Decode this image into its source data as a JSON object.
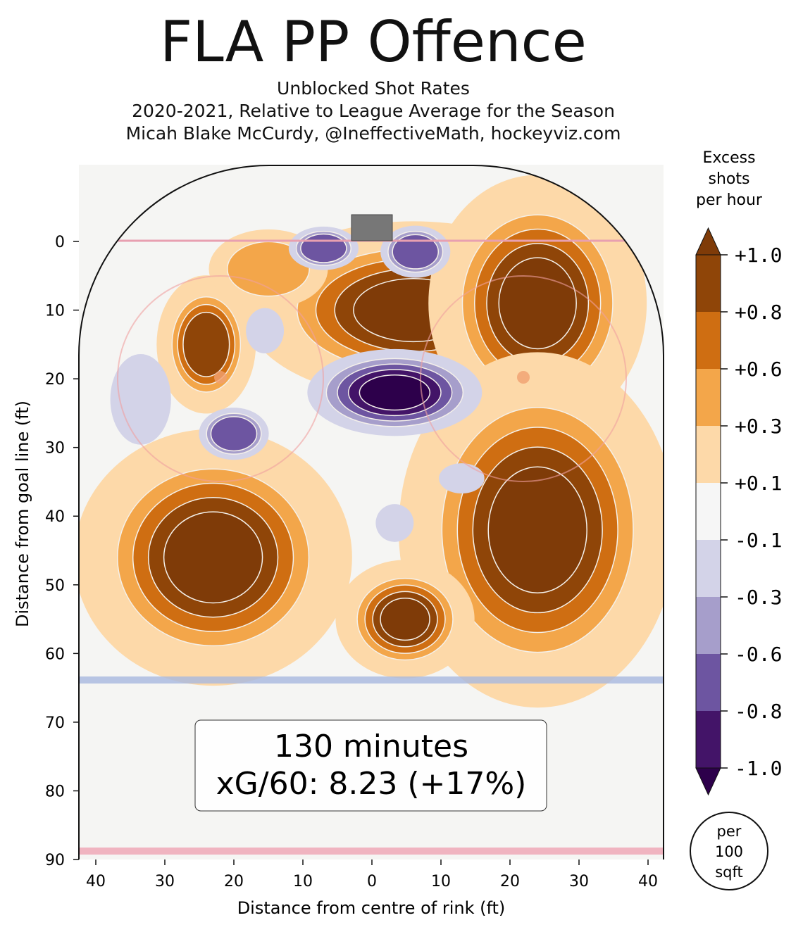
{
  "chart_data": {
    "type": "heatmap",
    "title": "FLA PP Offence",
    "subtitle": [
      "Unblocked Shot Rates",
      "2020-2021, Relative to League Average for the Season",
      "Micah Blake McCurdy, @IneffectiveMath, hockeyviz.com"
    ],
    "xlabel": "Distance from centre of rink (ft)",
    "ylabel": "Distance from goal line (ft)",
    "xticks": [
      {
        "v": -40,
        "label": "40"
      },
      {
        "v": -30,
        "label": "30"
      },
      {
        "v": -20,
        "label": "20"
      },
      {
        "v": -10,
        "label": "10"
      },
      {
        "v": 0,
        "label": "0"
      },
      {
        "v": 10,
        "label": "10"
      },
      {
        "v": 20,
        "label": "20"
      },
      {
        "v": 30,
        "label": "30"
      },
      {
        "v": 40,
        "label": "40"
      }
    ],
    "yticks": [
      0,
      10,
      20,
      30,
      40,
      50,
      60,
      70,
      80,
      90
    ],
    "xlim": [
      -42.5,
      42.5
    ],
    "ylim": [
      90,
      -11
    ],
    "grid": false,
    "colorbar": {
      "title": [
        "Excess",
        "shots",
        "per hour"
      ],
      "ticks": [
        "+1.0",
        "+0.8",
        "+0.6",
        "+0.3",
        "+0.1",
        "-0.1",
        "-0.3",
        "-0.6",
        "-0.8",
        "-1.0"
      ],
      "band_colors": [
        "#7f3b08",
        "#8f4508",
        "#cf6e12",
        "#f3a64a",
        "#fdd9a9",
        "#f6f6f6",
        "#d3d3e8",
        "#a69ecb",
        "#6d55a1",
        "#431468",
        "#2d004b"
      ],
      "unit_badge": [
        "per",
        "100",
        "sqft"
      ]
    },
    "regions": [
      {
        "x": -23,
        "y": 46,
        "rx": 14,
        "ry": 13,
        "level": 5
      },
      {
        "x": 6,
        "y": 10,
        "rx": 17,
        "ry": 9,
        "level": 5
      },
      {
        "x": 24,
        "y": 9,
        "rx": 11,
        "ry": 13,
        "level": 5
      },
      {
        "x": 24,
        "y": 42,
        "rx": 14,
        "ry": 18,
        "level": 5
      },
      {
        "x": 4.8,
        "y": 55,
        "rx": 7,
        "ry": 6,
        "level": 5
      },
      {
        "x": -24,
        "y": 15,
        "rx": 5,
        "ry": 7,
        "level": 4
      },
      {
        "x": -15,
        "y": 4,
        "rx": 6,
        "ry": 4,
        "level": 2
      },
      {
        "x": 3.3,
        "y": 22,
        "rx": 10,
        "ry": 5,
        "level": -5
      },
      {
        "x": -7,
        "y": 1,
        "rx": 4,
        "ry": 2.5,
        "level": -3
      },
      {
        "x": 6.3,
        "y": 1.5,
        "rx": 4,
        "ry": 3,
        "level": -3
      },
      {
        "x": -33.5,
        "y": 23,
        "rx": 4,
        "ry": 6,
        "level": -1
      },
      {
        "x": -20,
        "y": 28,
        "rx": 4,
        "ry": 3,
        "level": -3
      },
      {
        "x": -15.5,
        "y": 13,
        "rx": 2.5,
        "ry": 3,
        "level": -1
      },
      {
        "x": 13,
        "y": 34.5,
        "rx": 3,
        "ry": 2,
        "level": -1
      },
      {
        "x": 3.3,
        "y": 41,
        "rx": 2.5,
        "ry": 2.5,
        "level": -1
      }
    ],
    "annotation": [
      "130 minutes",
      "xG/60: 8.23 (+17%)"
    ]
  }
}
